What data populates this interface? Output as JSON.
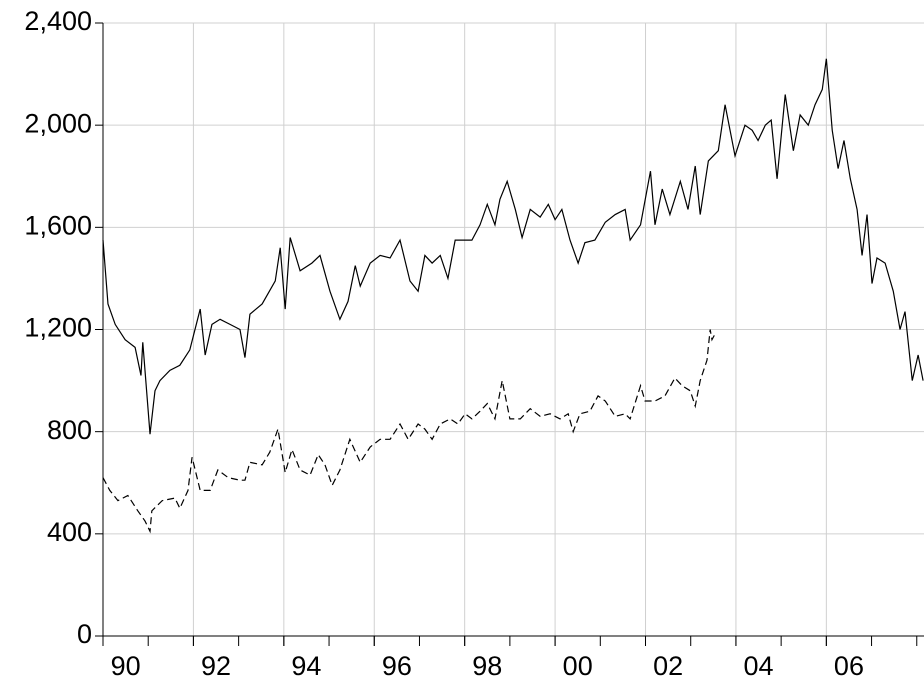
{
  "chart_data": {
    "type": "line",
    "xlim": [
      1990,
      2008.16
    ],
    "xticks": [
      {
        "value": 1990,
        "label": "90"
      },
      {
        "value": 1992,
        "label": "92"
      },
      {
        "value": 1994,
        "label": "94"
      },
      {
        "value": 1996,
        "label": "96"
      },
      {
        "value": 1998,
        "label": "98"
      },
      {
        "value": 2000,
        "label": "00"
      },
      {
        "value": 2002,
        "label": "02"
      },
      {
        "value": 2004,
        "label": "04"
      },
      {
        "value": 2006,
        "label": "06"
      }
    ],
    "ylim": [
      0,
      2400
    ],
    "yticks": [
      0,
      400,
      800,
      {
        "value": 1200,
        "label": "1,200"
      },
      {
        "value": 1600,
        "label": "1,600"
      },
      {
        "value": 2000,
        "label": "2,000"
      },
      {
        "value": 2400,
        "label": "2,400"
      }
    ],
    "grid": true,
    "series": [
      {
        "color": "#000000",
        "dash": false,
        "x": [
          1990.0,
          1990.11,
          1990.27,
          1990.49,
          1990.71,
          1990.84,
          1990.88,
          1991.04,
          1991.15,
          1991.26,
          1991.48,
          1991.7,
          1991.92,
          1992.15,
          1992.26,
          1992.41,
          1992.59,
          1992.81,
          1993.03,
          1993.14,
          1993.25,
          1993.52,
          1993.81,
          1993.92,
          1994.03,
          1994.14,
          1994.36,
          1994.62,
          1994.8,
          1995.02,
          1995.24,
          1995.42,
          1995.58,
          1995.69,
          1995.91,
          1996.13,
          1996.35,
          1996.57,
          1996.79,
          1996.97,
          1997.12,
          1997.28,
          1997.46,
          1997.63,
          1997.79,
          1998.01,
          1998.16,
          1998.34,
          1998.5,
          1998.67,
          1998.78,
          1998.94,
          1999.12,
          1999.27,
          1999.45,
          1999.67,
          1999.85,
          2000.0,
          2000.15,
          2000.33,
          2000.51,
          2000.66,
          2000.88,
          2001.11,
          2001.33,
          2001.55,
          2001.66,
          2001.89,
          2002.11,
          2002.21,
          2002.37,
          2002.54,
          2002.77,
          2002.94,
          2003.1,
          2003.21,
          2003.39,
          2003.61,
          2003.76,
          2003.98,
          2004.2,
          2004.36,
          2004.49,
          2004.65,
          2004.78,
          2004.91,
          2005.09,
          2005.27,
          2005.42,
          2005.6,
          2005.75,
          2005.91,
          2006.0,
          2006.13,
          2006.26,
          2006.39,
          2006.53,
          2006.68,
          2006.79,
          2006.9,
          2007.01,
          2007.12,
          2007.3,
          2007.48,
          2007.63,
          2007.74,
          2007.9,
          2008.03,
          2008.14
        ],
        "values": [
          1550,
          1300,
          1220,
          1160,
          1130,
          1020,
          1150,
          790,
          960,
          1000,
          1040,
          1060,
          1120,
          1280,
          1100,
          1220,
          1240,
          1220,
          1200,
          1090,
          1260,
          1300,
          1390,
          1520,
          1280,
          1560,
          1430,
          1460,
          1490,
          1350,
          1240,
          1310,
          1450,
          1370,
          1460,
          1490,
          1480,
          1550,
          1390,
          1350,
          1490,
          1460,
          1490,
          1400,
          1550,
          1550,
          1550,
          1610,
          1690,
          1610,
          1710,
          1780,
          1670,
          1560,
          1670,
          1640,
          1690,
          1630,
          1670,
          1550,
          1460,
          1540,
          1550,
          1620,
          1650,
          1670,
          1550,
          1610,
          1820,
          1610,
          1750,
          1650,
          1780,
          1670,
          1840,
          1650,
          1860,
          1900,
          2080,
          1880,
          2000,
          1980,
          1940,
          2000,
          2020,
          1790,
          2120,
          1900,
          2040,
          2000,
          2080,
          2140,
          2260,
          1980,
          1830,
          1940,
          1790,
          1670,
          1490,
          1650,
          1380,
          1480,
          1460,
          1350,
          1200,
          1270,
          1000,
          1100,
          1000
        ]
      },
      {
        "color": "#000000",
        "dash": true,
        "x": [
          1990.0,
          1990.15,
          1990.33,
          1990.55,
          1990.77,
          1990.93,
          1991.04,
          1991.08,
          1991.31,
          1991.59,
          1991.7,
          1991.88,
          1991.97,
          1992.15,
          1992.37,
          1992.54,
          1992.77,
          1993.03,
          1993.14,
          1993.25,
          1993.52,
          1993.69,
          1993.87,
          1994.03,
          1994.18,
          1994.36,
          1994.58,
          1994.76,
          1994.91,
          1995.07,
          1995.24,
          1995.46,
          1995.69,
          1995.91,
          1996.13,
          1996.35,
          1996.57,
          1996.75,
          1996.97,
          1997.12,
          1997.28,
          1997.46,
          1997.68,
          1997.85,
          1998.01,
          1998.16,
          1998.34,
          1998.5,
          1998.67,
          1998.83,
          1999.0,
          1999.23,
          1999.45,
          1999.67,
          1999.89,
          2000.11,
          2000.29,
          2000.4,
          2000.55,
          2000.77,
          2000.95,
          2001.11,
          2001.33,
          2001.55,
          2001.66,
          2001.89,
          2001.99,
          2002.21,
          2002.43,
          2002.65,
          2002.81,
          2002.99,
          2003.1,
          2003.21,
          2003.36,
          2003.43,
          2003.47,
          2003.56
        ],
        "values": [
          620,
          570,
          530,
          550,
          490,
          450,
          410,
          490,
          530,
          540,
          500,
          570,
          700,
          570,
          570,
          650,
          620,
          610,
          610,
          680,
          670,
          720,
          810,
          640,
          730,
          650,
          630,
          710,
          670,
          590,
          650,
          770,
          680,
          740,
          770,
          770,
          830,
          770,
          830,
          810,
          770,
          830,
          850,
          830,
          870,
          850,
          880,
          910,
          850,
          1000,
          850,
          850,
          890,
          860,
          870,
          850,
          870,
          800,
          870,
          880,
          940,
          920,
          860,
          870,
          850,
          980,
          920,
          920,
          940,
          1010,
          980,
          960,
          900,
          1000,
          1080,
          1200,
          1160,
          1190
        ]
      }
    ]
  }
}
